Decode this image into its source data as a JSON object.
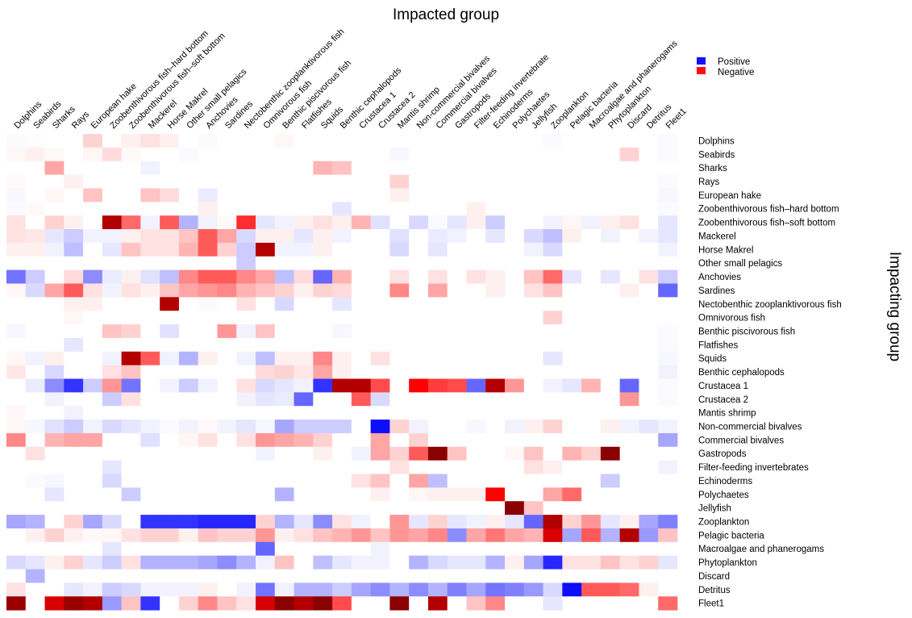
{
  "chart_data": {
    "type": "heatmap",
    "title": "",
    "xlabel": "Impacted group",
    "ylabel": "Impacting group",
    "x_position": "top",
    "y_position": "right",
    "legend": {
      "placement": "top-right",
      "entries": [
        {
          "label": "Positive",
          "color": "#1010ff"
        },
        {
          "label": "Negative",
          "color": "#ff1010"
        }
      ]
    },
    "scale": {
      "min": -1,
      "max": 1,
      "neutral_color": "#ffffff",
      "positive_color": "#0000ff",
      "negative_color": "#ff0000",
      "extreme_negative_color": "#8b0000"
    },
    "columns": [
      "Dolphins",
      "Seabirds",
      "Sharks",
      "Rays",
      "European hake",
      "Zoobenthivorous fish–hard bottom",
      "Zoobenthivorous fish–soft bottom",
      "Mackerel",
      "Horse Makrel",
      "Other small pelagics",
      "Anchovies",
      "Sardines",
      "Nectobenthic zooplanktivorous fish",
      "Omnivorous fish",
      "Benthic piscivorous fish",
      "Flatfishes",
      "Squids",
      "Benthic cephalopods",
      "Crustacea 1",
      "Crustacea 2",
      "Mantis shrimp",
      "Non-commercial bivalves",
      "Commercial bivalves",
      "Gastropods",
      "Filter-feeding invertebrate",
      "Echinoderms",
      "Polychaetes",
      "Jellyfish",
      "Zooplankton",
      "Pelagic bacteria",
      "Macroalgae and phanerogams",
      "Phytoplankton",
      "Discard",
      "Detritus",
      "Fleet1"
    ],
    "rows": [
      "Dolphins",
      "Seabirds",
      "Sharks",
      "Rays",
      "European hake",
      "Zoobenthivorous fish–hard bottom",
      "Zoobenthivorous fish–soft bottom",
      "Mackerel",
      "Horse Makrel",
      "Other small pelagics",
      "Anchovies",
      "Sardines",
      "Nectobenthic zooplanktivorous fish",
      "Omnivorous fish",
      "Benthic piscivorous fish",
      "Flatfishes",
      "Squids",
      "Benthic cephalopods",
      "Crustacea 1",
      "Crustacea 2",
      "Mantis shrimp",
      "Non-commercial bivalves",
      "Commercial bivalves",
      "Gastropods",
      "Filter-feeding invertebrates",
      "Echinoderms",
      "Polychaetes",
      "Jellyfish",
      "Zooplankton",
      "Pelagic bacteria",
      "Macroalgae and phanerogams",
      "Phytoplankton",
      "Discard",
      "Detritus",
      "Fleet1"
    ],
    "values": [
      [
        0.02,
        -0.01,
        0,
        0,
        -0.15,
        0,
        -0.05,
        -0.1,
        -0.05,
        0,
        0.02,
        0,
        0,
        0,
        -0.03,
        0,
        0,
        0,
        0,
        0,
        0,
        0,
        0,
        0,
        0,
        0,
        0,
        0,
        0.02,
        0,
        0,
        0,
        0,
        0,
        0.02
      ],
      [
        -0.03,
        -0.05,
        -0.02,
        0,
        -0.03,
        -0.12,
        -0.02,
        0,
        0,
        0.02,
        0,
        0,
        0,
        0,
        0,
        0,
        0,
        0,
        0,
        0,
        0.03,
        0,
        0,
        0,
        0,
        0,
        0,
        0,
        0,
        0,
        0,
        0,
        -0.15,
        0,
        0.02
      ],
      [
        0,
        0,
        -0.3,
        0,
        0,
        0,
        0,
        0.05,
        0,
        0,
        0,
        0,
        0,
        0,
        0,
        0,
        -0.25,
        -0.2,
        0,
        0,
        0,
        0,
        0,
        0,
        0,
        0,
        0,
        0,
        0,
        0,
        0,
        0,
        0,
        0,
        0
      ],
      [
        -0.02,
        0,
        0,
        -0.05,
        0,
        0,
        0,
        0,
        0,
        0,
        0,
        0,
        0,
        0,
        0,
        0,
        0,
        0,
        0,
        0,
        -0.15,
        0,
        0,
        0,
        0,
        0,
        0,
        0,
        0,
        0,
        0,
        0,
        0,
        0,
        0.02
      ],
      [
        0.03,
        0,
        -0.03,
        0,
        -0.2,
        0,
        0,
        -0.2,
        -0.12,
        0,
        0.08,
        0,
        0,
        0,
        0,
        0,
        0,
        0,
        0,
        0,
        -0.05,
        0,
        0,
        0,
        0,
        0,
        0,
        0,
        0,
        0,
        0,
        0,
        0,
        0,
        0.03
      ],
      [
        0.02,
        -0.02,
        0,
        0,
        0,
        0,
        0,
        0,
        0,
        0,
        -0.05,
        0,
        0,
        0,
        0,
        0,
        0,
        0.1,
        0,
        0,
        0,
        0,
        0,
        0,
        -0.05,
        0,
        0,
        0,
        0,
        0,
        0,
        0,
        0,
        0,
        0.02
      ],
      [
        -0.1,
        0,
        -0.15,
        -0.05,
        0,
        -0.95,
        -0.5,
        0.05,
        -0.55,
        0.3,
        0.05,
        -0.02,
        -0.7,
        0.1,
        0.05,
        -0.05,
        -0.1,
        -0.05,
        -0.25,
        0.12,
        0,
        0.15,
        0.02,
        0.1,
        -0.05,
        0.2,
        0,
        0,
        0.05,
        -0.03,
        0.05,
        -0.05,
        -0.1,
        0,
        0.1
      ],
      [
        -0.1,
        -0.08,
        0.1,
        0.2,
        0.05,
        0.05,
        -0.05,
        -0.1,
        -0.1,
        -0.2,
        -0.55,
        -0.3,
        0.15,
        -0.05,
        -0.05,
        0.1,
        -0.05,
        0.05,
        0,
        0,
        0.12,
        0,
        0.08,
        0.05,
        0,
        0.1,
        0,
        0.15,
        0.25,
        -0.05,
        0,
        0.05,
        0,
        0.05,
        0.1
      ],
      [
        -0.05,
        -0.05,
        0.05,
        0.25,
        0,
        0.1,
        -0.2,
        -0.1,
        -0.1,
        -0.25,
        -0.55,
        -0.15,
        0.2,
        -0.95,
        0.05,
        0.05,
        -0.05,
        0,
        0,
        0,
        0.15,
        0,
        0.1,
        0,
        0,
        0,
        0,
        0.05,
        0.15,
        0,
        0,
        0,
        0,
        0,
        0.05
      ],
      [
        0,
        0,
        0,
        0,
        0,
        0,
        0,
        0,
        0,
        0,
        0,
        0,
        0.2,
        0,
        0,
        0,
        0,
        0,
        0,
        0,
        0,
        0,
        0,
        0,
        0,
        0,
        0,
        0,
        0,
        0,
        0,
        0,
        0,
        0,
        0
      ],
      [
        0.55,
        0.2,
        0,
        -0.12,
        0.45,
        0.08,
        -0.05,
        0.12,
        0.25,
        -0.4,
        -0.55,
        -0.55,
        -0.4,
        -0.3,
        0.25,
        -0.12,
        0.6,
        -0.25,
        0,
        0,
        -0.1,
        0,
        -0.1,
        0,
        -0.1,
        -0.05,
        0,
        -0.2,
        -0.5,
        0.1,
        0,
        0.1,
        0,
        -0.1,
        0.2
      ],
      [
        -0.03,
        0.15,
        -0.3,
        -0.55,
        -0.1,
        0.05,
        -0.1,
        -0.05,
        -0.2,
        -0.3,
        -0.35,
        -0.4,
        -0.25,
        -0.2,
        -0.15,
        -0.05,
        -0.15,
        -0.12,
        0,
        0,
        -0.4,
        0,
        -0.3,
        0,
        0,
        -0.05,
        0,
        -0.1,
        -0.2,
        0,
        0,
        0,
        -0.05,
        0,
        0.6
      ],
      [
        0,
        0,
        0,
        -0.05,
        -0.05,
        0,
        0,
        0,
        -0.95,
        0,
        -0.02,
        0,
        -0.1,
        0,
        0.15,
        0,
        0,
        0.1,
        0,
        0,
        0,
        0,
        0,
        0,
        0,
        0,
        0,
        0,
        0,
        0,
        0,
        0,
        0,
        0,
        0
      ],
      [
        0,
        0,
        0,
        -0.03,
        0,
        0,
        0,
        0,
        0,
        0,
        0,
        0,
        0,
        0,
        0,
        0,
        0,
        0,
        0,
        0,
        0,
        0,
        0,
        0,
        0,
        0,
        0,
        0,
        -0.15,
        0,
        0,
        0,
        0,
        0,
        0
      ],
      [
        0.03,
        0,
        0,
        0,
        0,
        -0.2,
        -0.15,
        0,
        0.12,
        0,
        0,
        -0.35,
        0.05,
        -0.2,
        0,
        0,
        0,
        0.03,
        0,
        0,
        0,
        0,
        0,
        0,
        0,
        0,
        0,
        0,
        0,
        0,
        0,
        0,
        0,
        0,
        0.02
      ],
      [
        0,
        0,
        0,
        0.1,
        0,
        0,
        0,
        0,
        0,
        0,
        0,
        0,
        0,
        0,
        0,
        0,
        0,
        0,
        0,
        0,
        0,
        0,
        0,
        0,
        0,
        0,
        0,
        0,
        0,
        0,
        0,
        0,
        0,
        0,
        0.02
      ],
      [
        -0.03,
        0.05,
        -0.05,
        0,
        0,
        0.05,
        -0.95,
        -0.55,
        0.05,
        0.3,
        -0.05,
        0,
        0.05,
        0.25,
        -0.05,
        -0.05,
        -0.4,
        -0.05,
        0,
        -0.1,
        0,
        0,
        0,
        0,
        0,
        0,
        0,
        0,
        0.1,
        0,
        0,
        0,
        0,
        0,
        0.03
      ],
      [
        -0.08,
        0,
        0.15,
        0,
        0,
        -0.1,
        -0.2,
        0,
        0,
        0,
        0,
        0,
        0,
        -0.12,
        -0.15,
        -0.08,
        -0.3,
        -0.05,
        0,
        0,
        0,
        0,
        0,
        0,
        0,
        0,
        0,
        0,
        0,
        0,
        0,
        0,
        0,
        0,
        0.05
      ],
      [
        0,
        0.08,
        0.45,
        0.8,
        0.2,
        -0.35,
        0.55,
        0,
        0.05,
        0.2,
        0.05,
        0,
        -0.1,
        0.15,
        0.1,
        0.05,
        0.8,
        -0.95,
        -0.95,
        -0.6,
        0,
        -0.85,
        -0.65,
        -0.6,
        0.6,
        -0.95,
        -0.35,
        0,
        0.05,
        0.1,
        -0.25,
        0,
        0.6,
        0,
        0.02
      ],
      [
        0,
        0,
        0.05,
        0,
        0,
        0.2,
        -0.1,
        0,
        0,
        0,
        0,
        0,
        0.05,
        0.1,
        0.08,
        0.6,
        0,
        0,
        -0.55,
        0.15,
        0,
        0,
        0,
        0,
        0,
        0,
        0,
        0,
        0,
        0,
        0,
        0,
        -0.35,
        0,
        0.02
      ],
      [
        -0.03,
        0,
        0,
        0.05,
        0,
        0,
        0,
        0,
        0,
        0,
        0,
        0,
        0,
        0,
        0,
        0,
        0,
        0,
        0,
        0,
        0,
        0,
        0,
        0,
        0,
        0,
        0,
        0,
        0,
        0,
        0,
        0,
        0,
        0,
        0
      ],
      [
        -0.03,
        0.03,
        0.12,
        0.2,
        0.05,
        0.15,
        0.1,
        0.05,
        0.02,
        0.05,
        -0.02,
        0.05,
        0.1,
        0.03,
        0.35,
        0.2,
        0.2,
        0.2,
        0,
        0.95,
        -0.15,
        0.05,
        0,
        0,
        0.03,
        0,
        0.05,
        -0.05,
        -0.15,
        0,
        0,
        -0.05,
        0.05,
        0.1,
        0.05
      ],
      [
        -0.4,
        0,
        -0.25,
        -0.3,
        -0.3,
        0,
        0,
        0.12,
        0,
        -0.03,
        -0.1,
        0,
        -0.1,
        -0.35,
        -0.3,
        -0.25,
        -0.15,
        0,
        0,
        -0.3,
        0,
        -0.15,
        0,
        0,
        0,
        0,
        0,
        0,
        0,
        0,
        0,
        0,
        0,
        0,
        0.35
      ],
      [
        0,
        -0.1,
        0,
        0,
        0,
        0,
        0,
        0,
        0,
        0,
        0,
        0,
        0,
        0.05,
        0,
        0,
        -0.05,
        0,
        0.05,
        -0.3,
        -0.15,
        -0.55,
        -1,
        -0.2,
        0,
        0,
        -0.03,
        -0.2,
        0,
        -0.25,
        -0.15,
        -1,
        0,
        0,
        0
      ],
      [
        0,
        0,
        0,
        0,
        0,
        0.1,
        0,
        0,
        0,
        0,
        0,
        0,
        0,
        0,
        0,
        0,
        0,
        0,
        0,
        0,
        -0.1,
        0,
        0,
        0,
        0,
        0,
        0,
        -0.1,
        -0.05,
        0,
        0,
        0,
        0,
        0,
        0.05
      ],
      [
        0,
        0.02,
        0.03,
        0,
        0,
        0.15,
        0,
        0,
        0,
        0,
        0,
        0,
        0,
        0,
        0,
        0,
        0,
        0,
        -0.1,
        -0.2,
        0,
        -0.3,
        0.25,
        0,
        0,
        0,
        0,
        0,
        0,
        0,
        0,
        0.2,
        0,
        0,
        0
      ],
      [
        0,
        0,
        0.1,
        0,
        0,
        0,
        0.2,
        0,
        0,
        0,
        0,
        0,
        0,
        0,
        0.3,
        0,
        0,
        0,
        0,
        -0.05,
        0,
        -0.03,
        -0.05,
        -0.05,
        -0.05,
        -0.85,
        0,
        0,
        -0.3,
        -0.5,
        0,
        0,
        0,
        0,
        0
      ],
      [
        0,
        0,
        0,
        0,
        0,
        0,
        0,
        0,
        0,
        0,
        0,
        0,
        0,
        0,
        0,
        0,
        0,
        0,
        0,
        0,
        0,
        0,
        0,
        0,
        0,
        0,
        -1,
        -0.2,
        0,
        0,
        0,
        0,
        0,
        0,
        0
      ],
      [
        0.35,
        0.3,
        0,
        -0.15,
        0.35,
        0.15,
        0,
        0.8,
        0.8,
        0.8,
        0.85,
        0.85,
        0.85,
        -0.15,
        0.3,
        0.1,
        0.45,
        -0.1,
        0.05,
        0,
        -0.35,
        0.1,
        -0.15,
        0.1,
        0.05,
        -0.05,
        0.1,
        0.6,
        -0.95,
        -0.15,
        -0.35,
        0.1,
        -0.05,
        0.35,
        0.5
      ],
      [
        0,
        -0.05,
        -0.15,
        -0.05,
        -0.02,
        -0.03,
        -0.1,
        -0.15,
        -0.15,
        -0.05,
        -0.2,
        -0.15,
        -0.15,
        -0.35,
        -0.05,
        -0.1,
        -0.2,
        -0.25,
        -0.35,
        -0.2,
        -0.35,
        -0.3,
        -0.4,
        0.45,
        -0.3,
        -0.45,
        -0.3,
        -0.25,
        -0.9,
        0.35,
        -0.55,
        0.3,
        -0.95,
        0.4,
        -0.2
      ],
      [
        0,
        0,
        0,
        0,
        0,
        0.1,
        0,
        0,
        0,
        0,
        0,
        0,
        0,
        0.6,
        0,
        0,
        0,
        0,
        0,
        0.05,
        0,
        0,
        0,
        0,
        0,
        0,
        0,
        0,
        0,
        0,
        0,
        0,
        0,
        0,
        0
      ],
      [
        0.15,
        0.1,
        -0.05,
        -0.15,
        0.1,
        0.2,
        -0.1,
        0.3,
        0.3,
        0.3,
        0.35,
        0.45,
        0.3,
        0.05,
        -0.2,
        0,
        0.25,
        0.1,
        0.05,
        0.05,
        0,
        0.3,
        0.15,
        0.1,
        0.1,
        0.3,
        -0.05,
        0.35,
        0.85,
        -0.1,
        -0.1,
        -0.2,
        -0.1,
        -0.15,
        0.1
      ],
      [
        0,
        0.3,
        0,
        0,
        0,
        0,
        0,
        0,
        0,
        0,
        0,
        0,
        0,
        0,
        0,
        0,
        0,
        0,
        0,
        0,
        0,
        0,
        0,
        0,
        0,
        0,
        0,
        0,
        0,
        0,
        0,
        0,
        0,
        0,
        0
      ],
      [
        -0.1,
        0,
        0,
        0.1,
        0.05,
        0.2,
        0.15,
        0.05,
        0.05,
        0.05,
        -0.05,
        0,
        0.05,
        0.55,
        0.05,
        0.3,
        0.3,
        0.2,
        0.35,
        0.45,
        0.3,
        0.45,
        0.3,
        0.5,
        0.35,
        0.55,
        0.5,
        0.4,
        0.15,
        0.95,
        -0.55,
        -0.55,
        -0.5,
        -0.05,
        0
      ],
      [
        -0.98,
        0,
        -0.9,
        -0.98,
        -0.95,
        0.4,
        -0.2,
        0.8,
        0,
        -0.15,
        -0.4,
        -0.2,
        -0.1,
        -0.9,
        -1,
        -0.95,
        -1,
        -0.6,
        0,
        0,
        -1,
        0,
        -0.95,
        0,
        -0.2,
        -0.4,
        0,
        0,
        0.1,
        0,
        0,
        0,
        0,
        0,
        -0.5
      ]
    ]
  }
}
